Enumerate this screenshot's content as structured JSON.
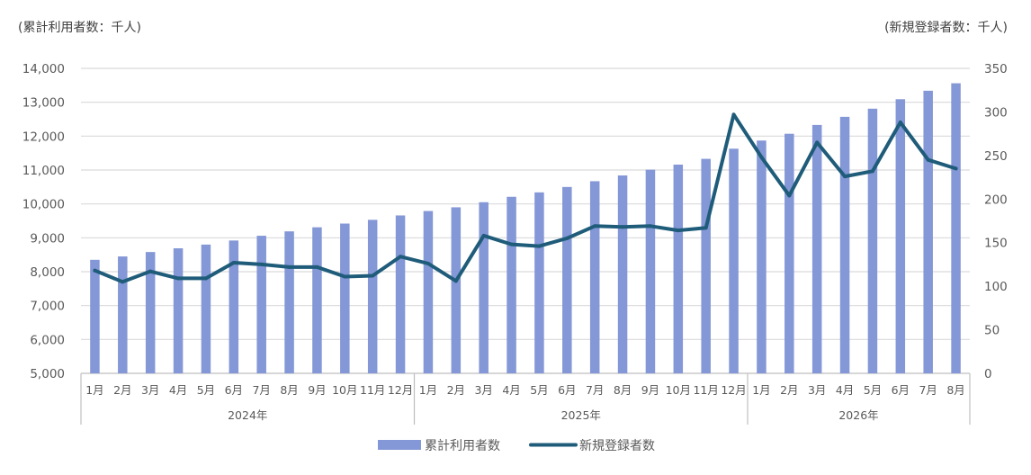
{
  "chart_data": {
    "type": "bar+line",
    "left_axis_label": "(累計利用者数：千人)",
    "right_axis_label": "(新規登録者数：千人)",
    "left_ylim": [
      5000,
      14000
    ],
    "left_ticks": [
      "14,000",
      "13,000",
      "12,000",
      "11,000",
      "10,000",
      "9,000",
      "8,000",
      "7,000",
      "6,000",
      "5,000"
    ],
    "right_ylim": [
      0,
      350
    ],
    "right_ticks": [
      "350",
      "300",
      "250",
      "200",
      "150",
      "100",
      "50",
      "0"
    ],
    "grid": true,
    "legend_position": "bottom",
    "months": [
      "1月",
      "2月",
      "3月",
      "4月",
      "5月",
      "6月",
      "7月",
      "8月",
      "9月",
      "10月",
      "11月",
      "12月",
      "1月",
      "2月",
      "3月",
      "4月",
      "5月",
      "6月",
      "7月",
      "8月",
      "9月",
      "10月",
      "11月",
      "12月",
      "1月",
      "2月",
      "3月",
      "4月",
      "5月",
      "6月",
      "7月",
      "8月"
    ],
    "years": [
      {
        "label": "2024年",
        "count": 12
      },
      {
        "label": "2025年",
        "count": 12
      },
      {
        "label": "2026年",
        "count": 8
      }
    ],
    "series": [
      {
        "name": "累計利用者数",
        "type": "bar",
        "axis": "left",
        "color": "#8497d6",
        "values": [
          8350,
          8450,
          8580,
          8690,
          8800,
          8920,
          9060,
          9190,
          9310,
          9420,
          9530,
          9660,
          9790,
          9900,
          10050,
          10210,
          10340,
          10500,
          10670,
          10840,
          11010,
          11160,
          11330,
          11630,
          11870,
          12070,
          12330,
          12570,
          12810,
          13090,
          13340,
          13560
        ]
      },
      {
        "name": "新規登録者数",
        "type": "line",
        "axis": "right",
        "color": "#1f5c7a",
        "values": [
          118,
          105,
          117,
          109,
          109,
          127,
          125,
          122,
          122,
          111,
          112,
          134,
          126,
          106,
          158,
          148,
          146,
          155,
          169,
          168,
          169,
          164,
          167,
          297,
          248,
          204,
          265,
          226,
          232,
          288,
          245,
          235
        ]
      }
    ]
  }
}
